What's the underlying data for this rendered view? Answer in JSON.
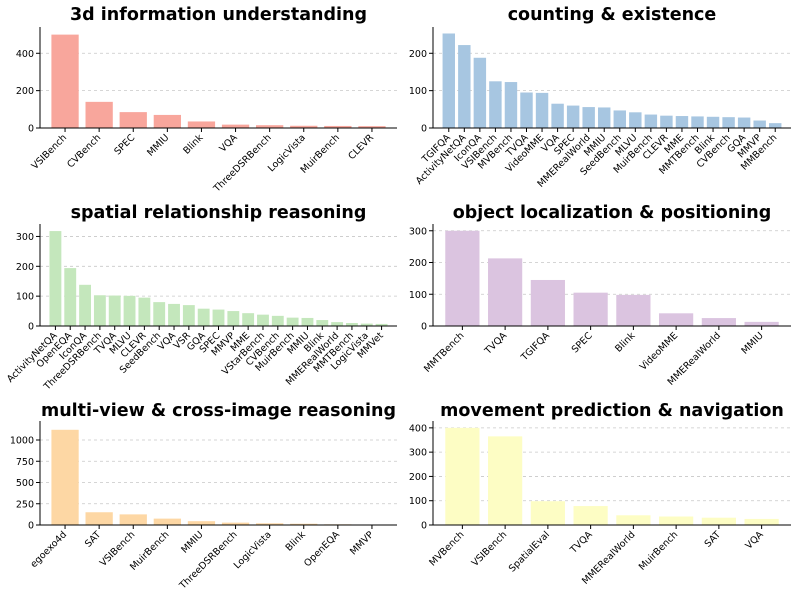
{
  "chart_data": [
    {
      "type": "bar",
      "title": "3d information understanding",
      "color": "#f8a69c",
      "ylim": [
        0,
        530
      ],
      "yticks": [
        0,
        200,
        400
      ],
      "categories": [
        "VSIBench",
        "CVBench",
        "SPEC",
        "MMIU",
        "Blink",
        "VQA",
        "ThreeDSRBench",
        "LogicVista",
        "MuirBench",
        "CLEVR"
      ],
      "values": [
        500,
        140,
        85,
        70,
        35,
        18,
        15,
        12,
        11,
        10
      ]
    },
    {
      "type": "bar",
      "title": "counting & existence",
      "color": "#a7c6e1",
      "ylim": [
        0,
        265
      ],
      "yticks": [
        0,
        100,
        200
      ],
      "categories": [
        "TGIFQA",
        "ActivityNetQA",
        "IconQA",
        "VSIBench",
        "MVBench",
        "TVQA",
        "VideoMME",
        "VQA",
        "SPEC",
        "MMERealWorld",
        "MMIU",
        "SeedBench",
        "MLVU",
        "MuirBench",
        "CLEVR",
        "MME",
        "MMTBench",
        "Blink",
        "CVBench",
        "GQA",
        "MMVP",
        "MMBench"
      ],
      "values": [
        253,
        222,
        188,
        125,
        123,
        95,
        94,
        65,
        60,
        56,
        55,
        47,
        42,
        36,
        33,
        32,
        31,
        30,
        29,
        28,
        20,
        13
      ]
    },
    {
      "type": "bar",
      "title": "spatial relationship reasoning",
      "color": "#c4e7bc",
      "ylim": [
        0,
        335
      ],
      "yticks": [
        0,
        100,
        200,
        300
      ],
      "categories": [
        "ActivityNetQA",
        "OpenEQA",
        "IconQA",
        "ThreeDSRBench",
        "TVQA",
        "MLVU",
        "CLEVR",
        "SeedBench",
        "VQA",
        "VSR",
        "GQA",
        "SPEC",
        "MMVP",
        "MME",
        "VStarBench",
        "CVBench",
        "MuirBench",
        "MMIU",
        "Blink",
        "MMERealWorld",
        "MMTBench",
        "LogicVista",
        "MMVet"
      ],
      "values": [
        318,
        194,
        138,
        103,
        102,
        101,
        95,
        80,
        74,
        70,
        58,
        55,
        50,
        43,
        38,
        34,
        28,
        27,
        20,
        13,
        10,
        8,
        7
      ]
    },
    {
      "type": "bar",
      "title": "object localization & positioning",
      "color": "#dbc4e0",
      "ylim": [
        0,
        315
      ],
      "yticks": [
        0,
        100,
        200,
        300
      ],
      "categories": [
        "MMTBench",
        "TVQA",
        "TGIFQA",
        "SPEC",
        "Blink",
        "VideoMME",
        "MMERealWorld",
        "MMIU"
      ],
      "values": [
        300,
        213,
        145,
        105,
        98,
        40,
        25,
        13
      ]
    },
    {
      "type": "bar",
      "title": "multi-view & cross-image reasoning",
      "color": "#fdd7a4",
      "ylim": [
        0,
        1200
      ],
      "yticks": [
        0,
        250,
        500,
        750,
        1000
      ],
      "categories": [
        "egoexo4d",
        "SAT",
        "VSIBench",
        "MuirBench",
        "MMIU",
        "ThreeDSRBench",
        "LogicVista",
        "Blink",
        "OpenEQA",
        "MMVP"
      ],
      "values": [
        1120,
        150,
        125,
        75,
        45,
        28,
        20,
        15,
        8,
        5
      ]
    },
    {
      "type": "bar",
      "title": "movement prediction & navigation",
      "color": "#fdfdc4",
      "ylim": [
        0,
        420
      ],
      "yticks": [
        0,
        100,
        200,
        300,
        400
      ],
      "categories": [
        "MVBench",
        "VSIBench",
        "SpatialEval",
        "TVQA",
        "MMERealWorld",
        "MuirBench",
        "SAT",
        "VQA"
      ],
      "values": [
        400,
        365,
        98,
        78,
        40,
        35,
        30,
        25
      ]
    }
  ]
}
